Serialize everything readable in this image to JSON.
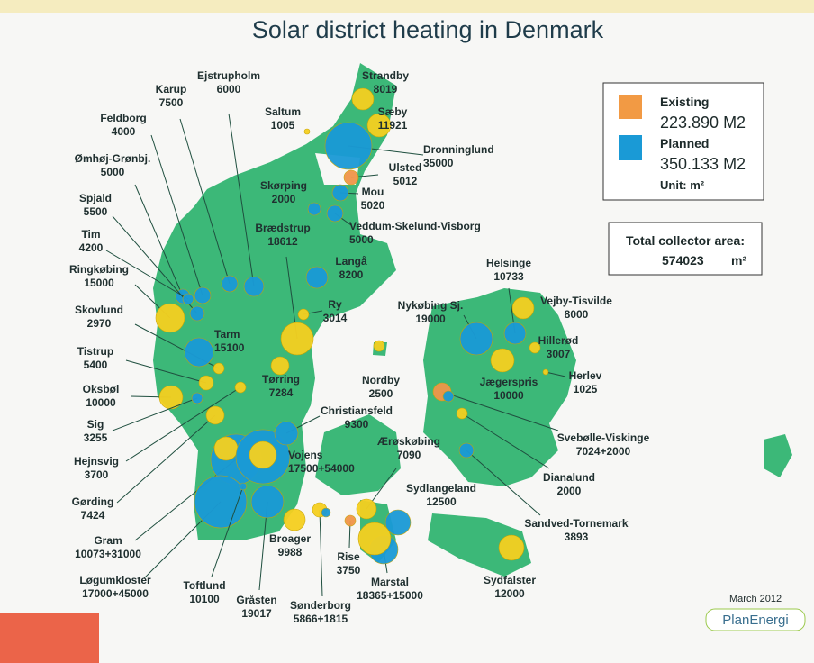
{
  "title": "Solar district heating in Denmark",
  "legend": {
    "existing": "Existing",
    "existing_area": "223.890 M2",
    "planned": "Planned",
    "planned_area": "350.133 M2",
    "unit": "Unit: m²"
  },
  "total": {
    "label": "Total collector area:",
    "value": "574023",
    "unit": "m²"
  },
  "plants": [
    {
      "name": "Strandby",
      "value": "8019"
    },
    {
      "name": "Sæby",
      "value": "11921"
    },
    {
      "name": "Saltum",
      "value": "1005"
    },
    {
      "name": "Dronninglund",
      "value": "35000"
    },
    {
      "name": "Ulsted",
      "value": "5012"
    },
    {
      "name": "Mou",
      "value": "5020"
    },
    {
      "name": "Skørping",
      "value": "2000"
    },
    {
      "name": "Veddum-Skelund-Visborg",
      "value": "5000"
    },
    {
      "name": "Ejstrupholm",
      "value": "6000"
    },
    {
      "name": "Karup",
      "value": "7500"
    },
    {
      "name": "Feldborg",
      "value": "4000"
    },
    {
      "name": "Ømhøj-Grønbj.",
      "value": "5000"
    },
    {
      "name": "Spjald",
      "value": "5500"
    },
    {
      "name": "Tim",
      "value": "4200"
    },
    {
      "name": "Ringkøbing",
      "value": "15000"
    },
    {
      "name": "Skovlund",
      "value": "2970"
    },
    {
      "name": "Tarm",
      "value": "15100"
    },
    {
      "name": "Tistrup",
      "value": "5400"
    },
    {
      "name": "Oksbøl",
      "value": "10000"
    },
    {
      "name": "Sig",
      "value": "3255"
    },
    {
      "name": "Hejnsvig",
      "value": "3700"
    },
    {
      "name": "Gørding",
      "value": "7424"
    },
    {
      "name": "Gram",
      "value": "10073+31000"
    },
    {
      "name": "Løgumkloster",
      "value": "17000+45000"
    },
    {
      "name": "Toftlund",
      "value": "10100"
    },
    {
      "name": "Gråsten",
      "value": "19017"
    },
    {
      "name": "Vojens",
      "value": "17500+54000"
    },
    {
      "name": "Christiansfeld",
      "value": "9300"
    },
    {
      "name": "Broager",
      "value": "9988"
    },
    {
      "name": "Sønderborg",
      "value": "5866+1815"
    },
    {
      "name": "Rise",
      "value": "3750"
    },
    {
      "name": "Ærøskøbing",
      "value": "7090"
    },
    {
      "name": "Sydlangeland",
      "value": "12500"
    },
    {
      "name": "Marstal",
      "value": "18365+15000"
    },
    {
      "name": "Sydfalster",
      "value": "12000"
    },
    {
      "name": "Sandved-Tornemark",
      "value": "3893"
    },
    {
      "name": "Dianalund",
      "value": "2000"
    },
    {
      "name": "Svebølle-Viskinge",
      "value": "7024+2000"
    },
    {
      "name": "Jægerspris",
      "value": "10000"
    },
    {
      "name": "Herlev",
      "value": "1025"
    },
    {
      "name": "Hillerød",
      "value": "3007"
    },
    {
      "name": "Vejby-Tisvilde",
      "value": "8000"
    },
    {
      "name": "Helsinge",
      "value": "10733"
    },
    {
      "name": "Nykøbing Sj.",
      "value": "19000"
    },
    {
      "name": "Nordby",
      "value": "2500"
    },
    {
      "name": "Ry",
      "value": "3014"
    },
    {
      "name": "Langå",
      "value": "8200"
    },
    {
      "name": "Brædstrup",
      "value": "18612"
    },
    {
      "name": "Tørring",
      "value": "7284"
    }
  ],
  "date": "March 2012",
  "logo": "PlanEnergi"
}
